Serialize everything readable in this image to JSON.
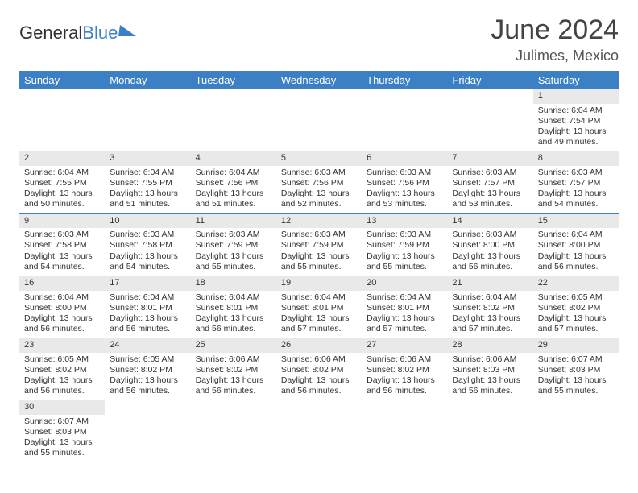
{
  "logo": {
    "part1": "General",
    "part2": "Blue",
    "gray": "#333333",
    "blue": "#3b7fc4"
  },
  "header": {
    "title": "June 2024",
    "location": "Julimes, Mexico"
  },
  "colors": {
    "header_bg": "#3b7fc4",
    "header_text": "#ffffff",
    "daynum_bg": "#e9e9e9",
    "row_separator": "#3b7fc4",
    "body_text": "#333333"
  },
  "typography": {
    "title_fontsize": 34,
    "location_fontsize": 18,
    "dayheader_fontsize": 13,
    "cell_fontsize": 10.5
  },
  "layout": {
    "columns": 7,
    "rows": 6,
    "month_start_weekday": 6,
    "days_in_month": 30
  },
  "day_labels": [
    "Sunday",
    "Monday",
    "Tuesday",
    "Wednesday",
    "Thursday",
    "Friday",
    "Saturday"
  ],
  "days": [
    {
      "n": 1,
      "sunrise": "6:04 AM",
      "sunset": "7:54 PM",
      "daylight": "13 hours and 49 minutes."
    },
    {
      "n": 2,
      "sunrise": "6:04 AM",
      "sunset": "7:55 PM",
      "daylight": "13 hours and 50 minutes."
    },
    {
      "n": 3,
      "sunrise": "6:04 AM",
      "sunset": "7:55 PM",
      "daylight": "13 hours and 51 minutes."
    },
    {
      "n": 4,
      "sunrise": "6:04 AM",
      "sunset": "7:56 PM",
      "daylight": "13 hours and 51 minutes."
    },
    {
      "n": 5,
      "sunrise": "6:03 AM",
      "sunset": "7:56 PM",
      "daylight": "13 hours and 52 minutes."
    },
    {
      "n": 6,
      "sunrise": "6:03 AM",
      "sunset": "7:56 PM",
      "daylight": "13 hours and 53 minutes."
    },
    {
      "n": 7,
      "sunrise": "6:03 AM",
      "sunset": "7:57 PM",
      "daylight": "13 hours and 53 minutes."
    },
    {
      "n": 8,
      "sunrise": "6:03 AM",
      "sunset": "7:57 PM",
      "daylight": "13 hours and 54 minutes."
    },
    {
      "n": 9,
      "sunrise": "6:03 AM",
      "sunset": "7:58 PM",
      "daylight": "13 hours and 54 minutes."
    },
    {
      "n": 10,
      "sunrise": "6:03 AM",
      "sunset": "7:58 PM",
      "daylight": "13 hours and 54 minutes."
    },
    {
      "n": 11,
      "sunrise": "6:03 AM",
      "sunset": "7:59 PM",
      "daylight": "13 hours and 55 minutes."
    },
    {
      "n": 12,
      "sunrise": "6:03 AM",
      "sunset": "7:59 PM",
      "daylight": "13 hours and 55 minutes."
    },
    {
      "n": 13,
      "sunrise": "6:03 AM",
      "sunset": "7:59 PM",
      "daylight": "13 hours and 55 minutes."
    },
    {
      "n": 14,
      "sunrise": "6:03 AM",
      "sunset": "8:00 PM",
      "daylight": "13 hours and 56 minutes."
    },
    {
      "n": 15,
      "sunrise": "6:04 AM",
      "sunset": "8:00 PM",
      "daylight": "13 hours and 56 minutes."
    },
    {
      "n": 16,
      "sunrise": "6:04 AM",
      "sunset": "8:00 PM",
      "daylight": "13 hours and 56 minutes."
    },
    {
      "n": 17,
      "sunrise": "6:04 AM",
      "sunset": "8:01 PM",
      "daylight": "13 hours and 56 minutes."
    },
    {
      "n": 18,
      "sunrise": "6:04 AM",
      "sunset": "8:01 PM",
      "daylight": "13 hours and 56 minutes."
    },
    {
      "n": 19,
      "sunrise": "6:04 AM",
      "sunset": "8:01 PM",
      "daylight": "13 hours and 57 minutes."
    },
    {
      "n": 20,
      "sunrise": "6:04 AM",
      "sunset": "8:01 PM",
      "daylight": "13 hours and 57 minutes."
    },
    {
      "n": 21,
      "sunrise": "6:04 AM",
      "sunset": "8:02 PM",
      "daylight": "13 hours and 57 minutes."
    },
    {
      "n": 22,
      "sunrise": "6:05 AM",
      "sunset": "8:02 PM",
      "daylight": "13 hours and 57 minutes."
    },
    {
      "n": 23,
      "sunrise": "6:05 AM",
      "sunset": "8:02 PM",
      "daylight": "13 hours and 56 minutes."
    },
    {
      "n": 24,
      "sunrise": "6:05 AM",
      "sunset": "8:02 PM",
      "daylight": "13 hours and 56 minutes."
    },
    {
      "n": 25,
      "sunrise": "6:06 AM",
      "sunset": "8:02 PM",
      "daylight": "13 hours and 56 minutes."
    },
    {
      "n": 26,
      "sunrise": "6:06 AM",
      "sunset": "8:02 PM",
      "daylight": "13 hours and 56 minutes."
    },
    {
      "n": 27,
      "sunrise": "6:06 AM",
      "sunset": "8:02 PM",
      "daylight": "13 hours and 56 minutes."
    },
    {
      "n": 28,
      "sunrise": "6:06 AM",
      "sunset": "8:03 PM",
      "daylight": "13 hours and 56 minutes."
    },
    {
      "n": 29,
      "sunrise": "6:07 AM",
      "sunset": "8:03 PM",
      "daylight": "13 hours and 55 minutes."
    },
    {
      "n": 30,
      "sunrise": "6:07 AM",
      "sunset": "8:03 PM",
      "daylight": "13 hours and 55 minutes."
    }
  ],
  "labels": {
    "sunrise": "Sunrise:",
    "sunset": "Sunset:",
    "daylight": "Daylight:"
  }
}
